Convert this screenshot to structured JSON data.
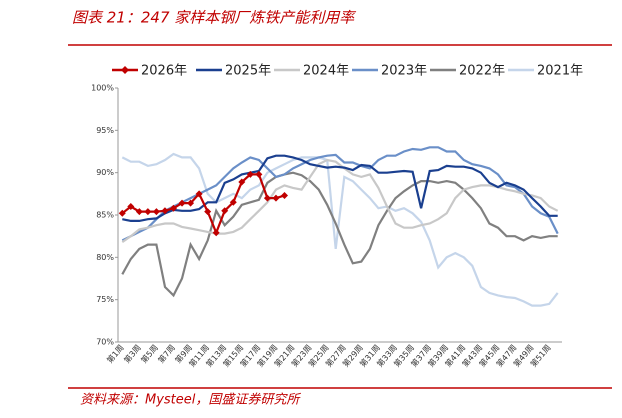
{
  "chart_data": {
    "type": "line",
    "title": "图表 21：247 家样本钢厂炼铁产能利用率",
    "source": "资料来源：Mysteel，国盛证券研究所",
    "categories": [
      "第1周",
      null,
      "第3周",
      null,
      "第5周",
      null,
      "第7周",
      null,
      "第9周",
      null,
      "第11周",
      null,
      "第13周",
      null,
      "第15周",
      null,
      "第17周",
      null,
      "第19周",
      null,
      "第21周",
      null,
      "第23周",
      null,
      "第25周",
      null,
      "第27周",
      null,
      "第29周",
      null,
      "第31周",
      null,
      "第33周",
      null,
      "第35周",
      null,
      "第37周",
      null,
      "第39周",
      null,
      "第41周",
      null,
      "第43周",
      null,
      "第45周",
      null,
      "第47周",
      null,
      "第49周",
      null,
      "第51周",
      null
    ],
    "ylim": [
      70,
      100
    ],
    "yticks": [
      {
        "value": 70,
        "label": "70%"
      },
      {
        "value": 75,
        "label": "75%"
      },
      {
        "value": 80,
        "label": "80%"
      },
      {
        "value": 85,
        "label": "85%"
      },
      {
        "value": 90,
        "label": "90%"
      },
      {
        "value": 95,
        "label": "95%"
      },
      {
        "value": 100,
        "label": "100%"
      }
    ],
    "grid": false,
    "legend": "top",
    "series": [
      {
        "name": "2026年",
        "color": "#c00000",
        "marker": "diamond",
        "values": [
          85.2,
          86.0,
          85.4,
          85.4,
          85.4,
          85.5,
          85.8,
          86.4,
          86.4,
          87.5,
          85.4,
          82.9,
          85.5,
          86.5,
          88.9,
          89.8,
          89.8,
          87.0,
          87.0,
          87.3,
          null,
          null,
          null,
          null,
          null,
          null,
          null,
          null,
          null,
          null,
          null,
          null,
          null,
          null,
          null,
          null,
          null,
          null,
          null,
          null,
          null,
          null,
          null,
          null,
          null,
          null,
          null,
          null,
          null,
          null,
          null,
          null
        ]
      },
      {
        "name": "2025年",
        "color": "#1a3f8f",
        "values": [
          84.5,
          84.3,
          84.3,
          84.5,
          84.6,
          85.2,
          85.6,
          85.5,
          85.5,
          85.7,
          86.5,
          86.5,
          88.8,
          89.2,
          89.8,
          90.0,
          90.2,
          91.7,
          92.0,
          92.0,
          91.8,
          91.5,
          91.0,
          90.8,
          90.6,
          90.7,
          90.6,
          90.3,
          90.9,
          90.8,
          90.0,
          90.0,
          90.1,
          90.2,
          90.1,
          85.8,
          90.2,
          90.3,
          90.8,
          90.7,
          90.7,
          90.5,
          90.0,
          88.8,
          88.3,
          88.8,
          88.5,
          88.0,
          87.0,
          86.0,
          84.9,
          84.9
        ]
      },
      {
        "name": "2024年",
        "color": "#c8c8c8",
        "values": [
          81.8,
          82.5,
          83.3,
          83.5,
          83.8,
          84.0,
          84.0,
          83.6,
          83.4,
          83.2,
          83.0,
          82.8,
          82.8,
          83.0,
          83.5,
          84.5,
          85.5,
          86.5,
          88.0,
          88.5,
          88.2,
          88.0,
          89.5,
          91.0,
          91.5,
          91.3,
          90.5,
          89.8,
          89.5,
          89.8,
          88.2,
          86.0,
          84.0,
          83.5,
          83.5,
          83.8,
          84.0,
          84.5,
          85.2,
          87.0,
          88.0,
          88.3,
          88.5,
          88.5,
          88.3,
          88.0,
          87.8,
          87.5,
          87.3,
          87.0,
          86.0,
          85.5
        ]
      },
      {
        "name": "2023年",
        "color": "#6a8fc8",
        "values": [
          82.0,
          82.5,
          83.0,
          83.5,
          84.5,
          85.5,
          86.0,
          86.5,
          87.0,
          87.5,
          88.0,
          88.5,
          89.5,
          90.5,
          91.2,
          91.8,
          91.5,
          90.5,
          89.5,
          89.8,
          90.5,
          91.0,
          91.5,
          91.8,
          92.0,
          92.1,
          91.2,
          91.2,
          90.8,
          90.5,
          91.5,
          92.0,
          92.0,
          92.5,
          92.8,
          92.7,
          93.0,
          93.0,
          92.5,
          92.5,
          91.5,
          91.0,
          90.8,
          90.5,
          89.8,
          88.5,
          88.3,
          87.5,
          86.0,
          85.2,
          84.8,
          82.8
        ]
      },
      {
        "name": "2022年",
        "color": "#808080",
        "values": [
          78.0,
          79.8,
          81.0,
          81.5,
          81.5,
          76.5,
          75.5,
          77.5,
          81.5,
          79.8,
          82.0,
          85.5,
          83.8,
          84.8,
          86.2,
          86.5,
          86.8,
          88.8,
          89.5,
          89.8,
          90.0,
          89.7,
          89.0,
          88.0,
          86.2,
          84.0,
          81.5,
          79.3,
          79.5,
          81.0,
          83.8,
          85.5,
          87.0,
          87.8,
          88.5,
          89.0,
          89.0,
          88.8,
          89.0,
          88.8,
          88.0,
          87.0,
          85.8,
          84.0,
          83.5,
          82.5,
          82.5,
          82.0,
          82.5,
          82.3,
          82.5,
          82.5
        ]
      },
      {
        "name": "2021年",
        "color": "#c5d5ea",
        "values": [
          91.8,
          91.3,
          91.3,
          90.8,
          91.0,
          91.5,
          92.2,
          91.8,
          91.8,
          90.5,
          87.5,
          86.5,
          87.0,
          87.5,
          87.0,
          88.0,
          88.5,
          90.0,
          90.5,
          91.0,
          91.5,
          91.8,
          91.8,
          91.8,
          91.5,
          81.0,
          89.5,
          89.0,
          88.0,
          87.0,
          85.8,
          86.0,
          85.5,
          85.8,
          85.2,
          84.2,
          82.0,
          78.8,
          80.0,
          80.5,
          80.0,
          79.0,
          76.5,
          75.8,
          75.5,
          75.3,
          75.2,
          74.8,
          74.3,
          74.3,
          74.5,
          75.8
        ]
      }
    ]
  }
}
